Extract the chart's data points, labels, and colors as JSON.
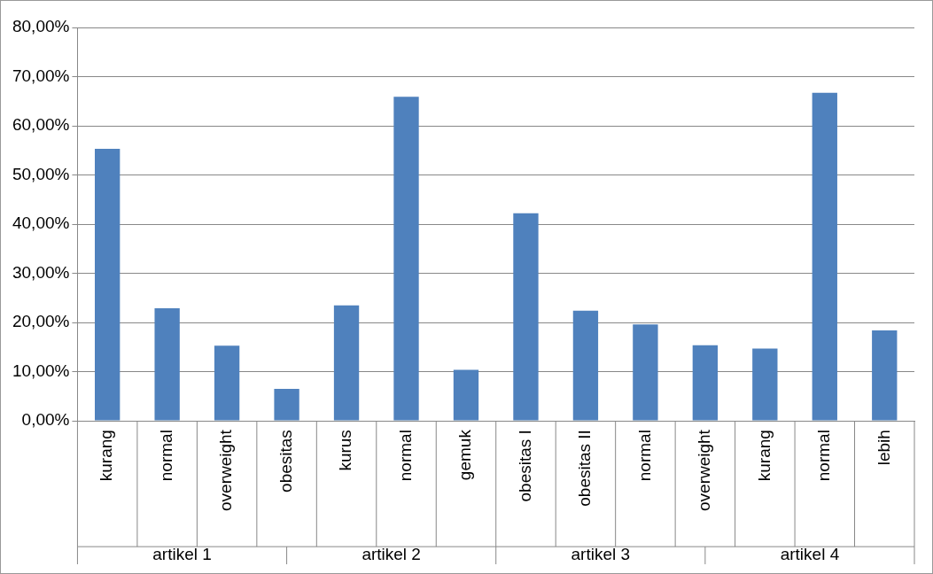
{
  "chart_data": {
    "type": "bar",
    "categories": [
      "kurang",
      "normal",
      "overweight",
      "obesitas",
      "kurus",
      "normal",
      "gemuk",
      "obesitas I",
      "obesitas II",
      "normal",
      "overweight",
      "kurang",
      "normal",
      "lebih"
    ],
    "values": [
      55.3,
      22.9,
      15.3,
      6.5,
      23.5,
      65.9,
      10.4,
      42.2,
      22.4,
      19.6,
      15.4,
      14.7,
      66.7,
      18.4
    ],
    "color": "#4f81bd",
    "ylim": [
      0,
      80
    ],
    "yticks": [
      {
        "value": 0,
        "label": "0,00%"
      },
      {
        "value": 10,
        "label": "10,00%"
      },
      {
        "value": 20,
        "label": "20,00%"
      },
      {
        "value": 30,
        "label": "30,00%"
      },
      {
        "value": 40,
        "label": "40,00%"
      },
      {
        "value": 50,
        "label": "50,00%"
      },
      {
        "value": 60,
        "label": "60,00%"
      },
      {
        "value": 70,
        "label": "70,00%"
      },
      {
        "value": 80,
        "label": "80,00%"
      }
    ],
    "annotations": [
      "artikel 1",
      "artikel 2",
      "artikel 3",
      "artikel 4"
    ],
    "grid": "y",
    "legend": false
  }
}
